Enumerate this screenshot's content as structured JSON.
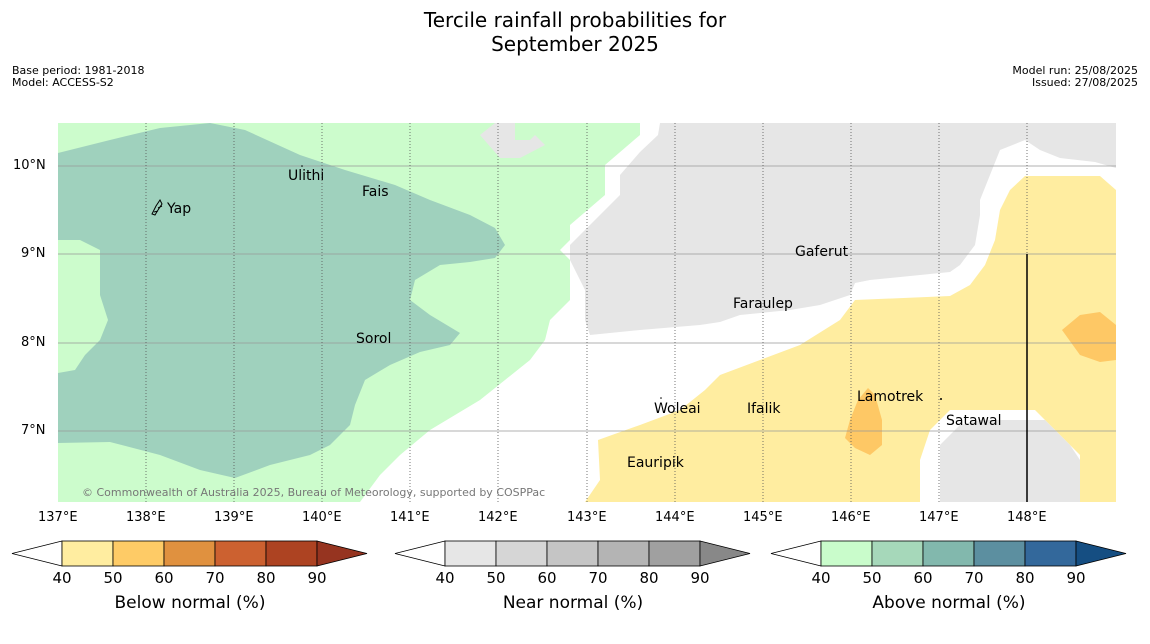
{
  "title": [
    "Tercile rainfall probabilities for",
    "September 2025"
  ],
  "meta_left": [
    "Base period: 1981-2018",
    "Model: ACCESS-S2"
  ],
  "meta_right": [
    "Model run: 25/08/2025",
    "Issued: 27/08/2025"
  ],
  "lat_labels": [
    "10°N",
    "9°N",
    "8°N",
    "7°N"
  ],
  "lon_labels": [
    "137°E",
    "138°E",
    "139°E",
    "140°E",
    "141°E",
    "142°E",
    "143°E",
    "144°E",
    "145°E",
    "146°E",
    "147°E",
    "148°E"
  ],
  "places": [
    "Ulithi",
    "Fais",
    "Yap",
    "Gaferut",
    "Faraulep",
    "Sorol",
    "Woleai",
    "Ifalik",
    "Lamotrek",
    "Satawal",
    "Eauripik"
  ],
  "copyright": "© Commonwealth of Australia 2025, Bureau of Meteorology, supported by COSPPac",
  "colorbars": [
    {
      "label": "Below normal (%)",
      "ticks": [
        "40",
        "50",
        "60",
        "70",
        "80",
        "90"
      ],
      "colors": [
        "#ffeda0",
        "#fecb66",
        "#e0913f",
        "#cc6130",
        "#ad4322",
        "#963420"
      ]
    },
    {
      "label": "Near normal (%)",
      "ticks": [
        "40",
        "50",
        "60",
        "70",
        "80",
        "90"
      ],
      "colors": [
        "#e6e6e6",
        "#d6d6d6",
        "#c5c5c5",
        "#b4b4b4",
        "#a0a0a0",
        "#888888"
      ]
    },
    {
      "label": "Above normal (%)",
      "ticks": [
        "40",
        "50",
        "60",
        "70",
        "80",
        "90"
      ],
      "colors": [
        "#c9fccb",
        "#a6d8ba",
        "#82b8ad",
        "#5c8fa0",
        "#33689b",
        "#154e82"
      ]
    }
  ],
  "colors": {
    "above_50": "#9fd1bd",
    "above_40": "#ccfccc",
    "near_40": "#e6e6e6",
    "below_40": "#ffeda0",
    "below_50": "#fec865"
  }
}
